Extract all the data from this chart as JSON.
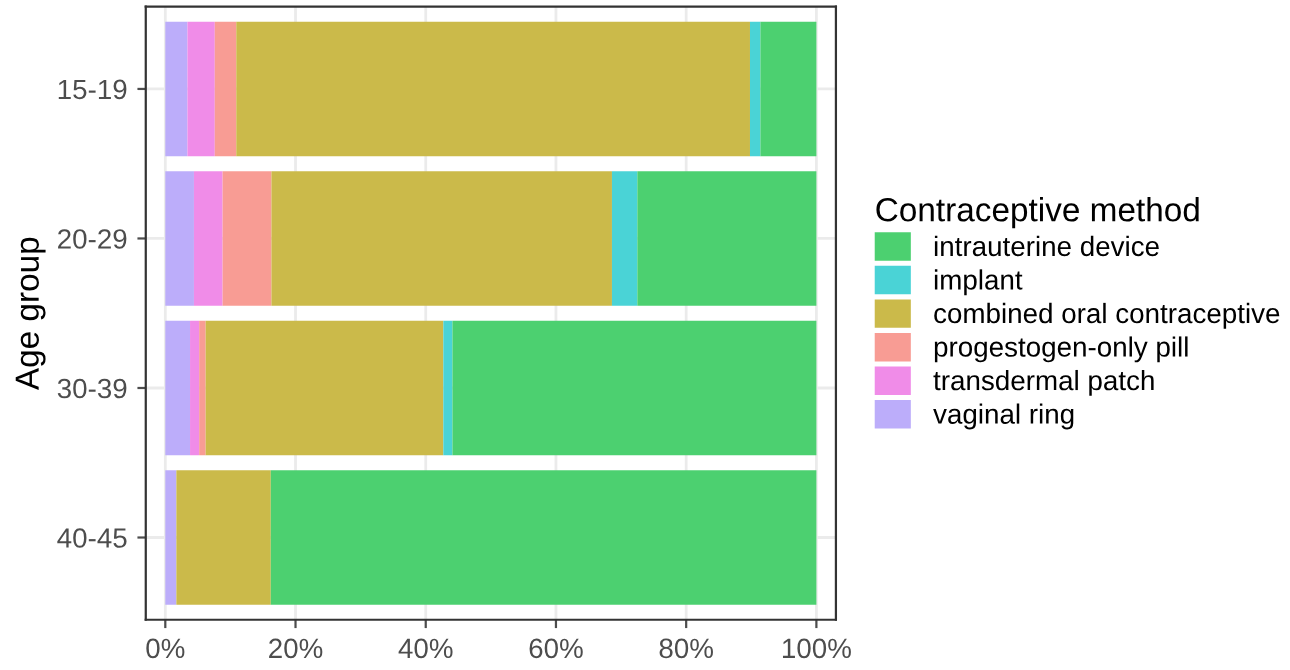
{
  "chart_data": {
    "type": "bar",
    "orientation": "horizontal",
    "stacked": true,
    "ylabel": "Age group",
    "legend_title": "Contraceptive method",
    "legend": "right",
    "grid": true,
    "categories": [
      "15-19",
      "20-29",
      "30-39",
      "40-45"
    ],
    "series": [
      {
        "name": "vaginal ring",
        "color": "#bcadfa",
        "values": [
          3.4,
          4.4,
          3.8,
          1.7
        ]
      },
      {
        "name": "transdermal patch",
        "color": "#f08ce8",
        "values": [
          4.2,
          4.4,
          1.4,
          0
        ]
      },
      {
        "name": "progestogen-only pill",
        "color": "#f89c94",
        "values": [
          3.3,
          7.5,
          1.0,
          0
        ]
      },
      {
        "name": "combined oral contraceptive",
        "color": "#cbba4a",
        "values": [
          78.9,
          52.3,
          36.5,
          14.5
        ]
      },
      {
        "name": "implant",
        "color": "#4ad3d6",
        "values": [
          1.6,
          3.9,
          1.4,
          0
        ]
      },
      {
        "name": "intrauterine device",
        "color": "#4cd070",
        "values": [
          8.6,
          27.5,
          55.9,
          83.8
        ]
      }
    ],
    "xlim": [
      -3,
      103
    ],
    "xticks": [
      {
        "value": 0,
        "label": "0%"
      },
      {
        "value": 20,
        "label": "20%"
      },
      {
        "value": 40,
        "label": "40%"
      },
      {
        "value": 60,
        "label": "60%"
      },
      {
        "value": 80,
        "label": "80%"
      },
      {
        "value": 100,
        "label": "100%"
      }
    ]
  }
}
